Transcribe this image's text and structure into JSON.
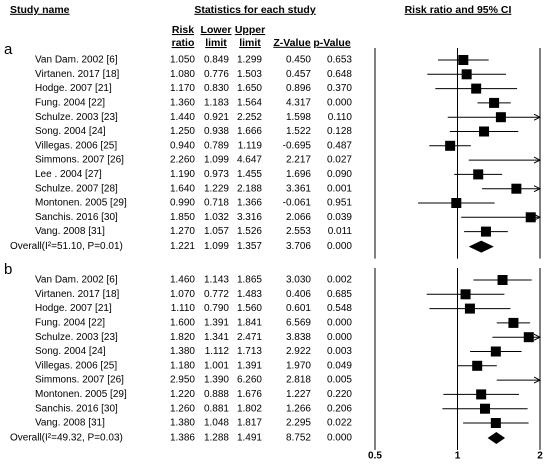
{
  "chart_data": {
    "type": "forest",
    "study_header": "Study name",
    "stats_header": "Statistics for each study",
    "plot_header": "Risk ratio and 95% CI",
    "columns": [
      "Risk ratio",
      "Lower limit",
      "Upper limit",
      "Z-Value",
      "p-Value"
    ],
    "xlim": [
      0.5,
      2
    ],
    "xticks": [
      0.5,
      1,
      2
    ],
    "log_scale": true,
    "color": "#000000",
    "panels": [
      {
        "label": "a",
        "studies": [
          "Van Dam. 2002 [6]",
          "Virtanen. 2017 [18]",
          "Hodge. 2007 [21]",
          "Fung. 2004 [22]",
          "Schulze. 2003 [23]",
          "Song. 2004 [24]",
          "Villegas. 2006 [25]",
          "Simmons. 2007 [26]",
          "Lee . 2004 [27]",
          "Schulze. 2007 [28]",
          "Montonen. 2005 [29]",
          "Sanchis. 2016 [30]",
          "Vang. 2008 [31]"
        ],
        "risk_ratio": {
          "values": [
            1.05,
            1.08,
            1.17,
            1.36,
            1.44,
            1.25,
            0.94,
            2.26,
            1.19,
            1.64,
            0.99,
            1.85,
            1.27
          ],
          "value_labels": [
            "1.050",
            "1.080",
            "1.170",
            "1.360",
            "1.440",
            "1.250",
            "0.940",
            "2.260",
            "1.190",
            "1.640",
            "0.990",
            "1.850",
            "1.270"
          ]
        },
        "lower": {
          "values": [
            0.849,
            0.776,
            0.83,
            1.183,
            0.921,
            0.938,
            0.789,
            1.099,
            0.973,
            1.229,
            0.718,
            1.032,
            1.057
          ],
          "value_labels": [
            "0.849",
            "0.776",
            "0.830",
            "1.183",
            "0.921",
            "0.938",
            "0.789",
            "1.099",
            "0.973",
            "1.229",
            "0.718",
            "1.032",
            "1.057"
          ]
        },
        "upper": {
          "values": [
            1.299,
            1.503,
            1.65,
            1.564,
            2.252,
            1.666,
            1.119,
            4.647,
            1.455,
            2.188,
            1.366,
            3.316,
            1.526
          ],
          "value_labels": [
            "1.299",
            "1.503",
            "1.650",
            "1.564",
            "2.252",
            "1.666",
            "1.119",
            "4.647",
            "1.455",
            "2.188",
            "1.366",
            "3.316",
            "1.526"
          ]
        },
        "z_value": [
          "0.450",
          "0.457",
          "0.896",
          "4.317",
          "1.598",
          "1.522",
          "-0.695",
          "2.217",
          "1.696",
          "3.361",
          "-0.061",
          "2.066",
          "2.553"
        ],
        "p_value": [
          "0.653",
          "0.648",
          "0.370",
          "0.000",
          "0.110",
          "0.128",
          "0.487",
          "0.027",
          "0.090",
          "0.001",
          "0.951",
          "0.039",
          "0.011"
        ],
        "overall": {
          "name": "Overall(I²=51.10, P=0.01)",
          "risk_ratio": 1.221,
          "lower": 1.099,
          "upper": 1.357,
          "z_value": "3.706",
          "p_value": "0.000"
        }
      },
      {
        "label": "b",
        "studies": [
          "Van Dam. 2002 [6]",
          "Virtanen. 2017 [18]",
          "Hodge. 2007 [21]",
          "Fung. 2004 [22]",
          "Schulze. 2003 [23]",
          "Song. 2004 [24]",
          "Villegas. 2006 [25]",
          "Simmons. 2007 [26]",
          "Montonen. 2005 [29]",
          "Sanchis. 2016 [30]",
          "Vang. 2008 [31]"
        ],
        "risk_ratio": {
          "values": [
            1.46,
            1.07,
            1.11,
            1.6,
            1.82,
            1.38,
            1.18,
            2.95,
            1.22,
            1.26,
            1.38
          ],
          "value_labels": [
            "1.460",
            "1.070",
            "1.110",
            "1.600",
            "1.820",
            "1.380",
            "1.180",
            "2.950",
            "1.220",
            "1.260",
            "1.380"
          ]
        },
        "lower": {
          "values": [
            1.143,
            0.772,
            0.79,
            1.391,
            1.341,
            1.112,
            1.001,
            1.39,
            0.888,
            0.881,
            1.048
          ],
          "value_labels": [
            "1.143",
            "0.772",
            "0.790",
            "1.391",
            "1.341",
            "1.112",
            "1.001",
            "1.390",
            "0.888",
            "0.881",
            "1.048"
          ]
        },
        "upper": {
          "values": [
            1.865,
            1.483,
            1.56,
            1.841,
            2.471,
            1.713,
            1.391,
            6.26,
            1.676,
            1.802,
            1.817
          ],
          "value_labels": [
            "1.865",
            "1.483",
            "1.560",
            "1.841",
            "2.471",
            "1.713",
            "1.391",
            "6.260",
            "1.676",
            "1.802",
            "1.817"
          ]
        },
        "z_value": [
          "3.030",
          "0.406",
          "0.601",
          "6.569",
          "3.838",
          "2.922",
          "1.970",
          "2.818",
          "1.227",
          "1.266",
          "2.295"
        ],
        "p_value": [
          "0.002",
          "0.685",
          "0.548",
          "0.000",
          "0.000",
          "0.003",
          "0.049",
          "0.005",
          "0.220",
          "0.206",
          "0.022"
        ],
        "overall": {
          "name": "Overall(I²=49.32, P=0.03)",
          "risk_ratio": 1.386,
          "lower": 1.288,
          "upper": 1.491,
          "z_value": "8.752",
          "p_value": "0.000"
        }
      }
    ]
  }
}
